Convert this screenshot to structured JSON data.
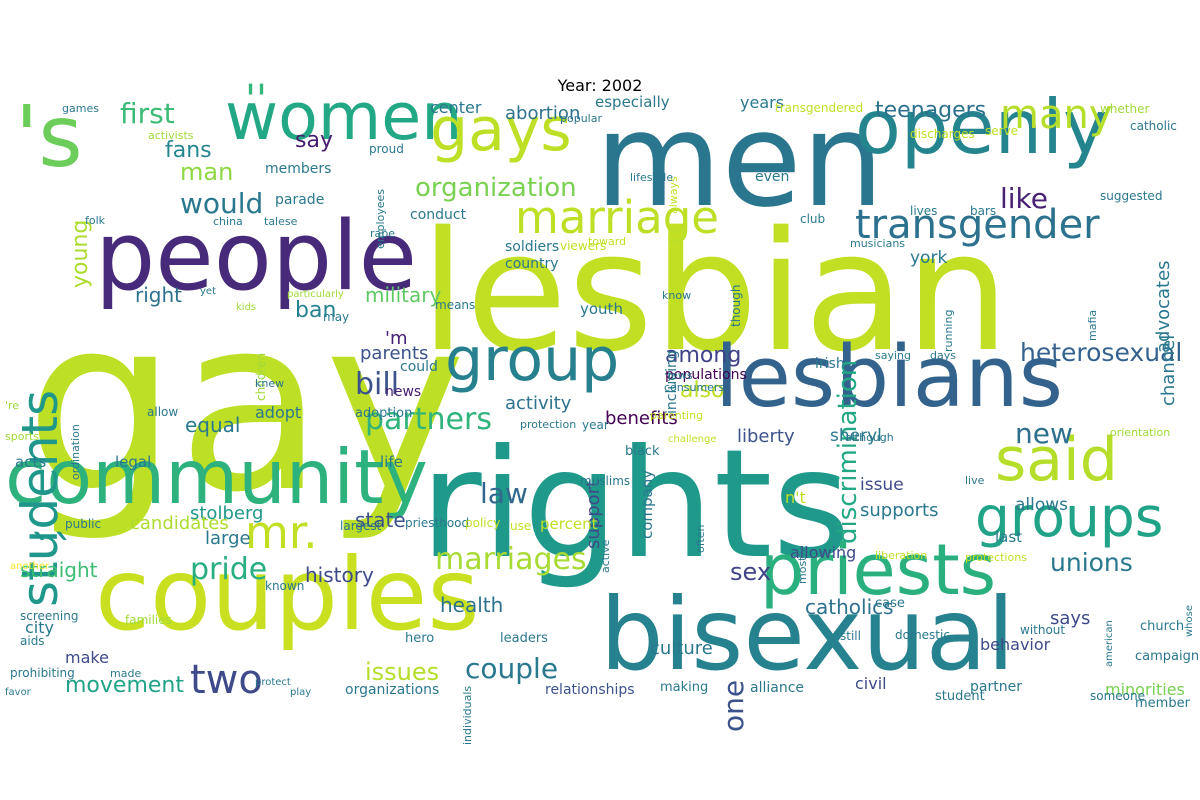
{
  "title": "Year: 2002",
  "palette": [
    "#440154",
    "#46327e",
    "#365c8d",
    "#277f8e",
    "#1fa187",
    "#4ac16d",
    "#a0da39",
    "#fde725"
  ],
  "words": [
    {
      "t": "gay",
      "c": "#bddf26",
      "v": false
    },
    {
      "t": "lesbian",
      "c": "#c2df23",
      "v": false
    },
    {
      "t": "rights",
      "c": "#1f9a8a",
      "v": false
    },
    {
      "t": "men",
      "c": "#2a768e",
      "v": false
    },
    {
      "t": "couples",
      "c": "#c8e020",
      "v": false
    },
    {
      "t": "bisexual",
      "c": "#26828e",
      "v": false
    },
    {
      "t": "people",
      "c": "#472a7a",
      "v": false
    },
    {
      "t": "lesbians",
      "c": "#33638d",
      "v": false
    },
    {
      "t": "community",
      "c": "#2db27d",
      "v": false
    },
    {
      "t": "openly",
      "c": "#25858e",
      "v": false
    },
    {
      "t": "'s",
      "c": "#6ccd5a",
      "v": false
    },
    {
      "t": "priests",
      "c": "#2ab07f",
      "v": false
    },
    {
      "t": "women",
      "c": "#22a884",
      "v": false
    },
    {
      "t": "group",
      "c": "#27808e",
      "v": false
    },
    {
      "t": "groups",
      "c": "#20a386",
      "v": false
    },
    {
      "t": "said",
      "c": "#b5de2b",
      "v": false
    },
    {
      "t": "gays",
      "c": "#bddf26",
      "v": false
    },
    {
      "t": "students",
      "c": "#1f988b",
      "v": true
    },
    {
      "t": "transgender",
      "c": "#2c728e",
      "v": false
    },
    {
      "t": "marriage",
      "c": "#bddf26",
      "v": false
    },
    {
      "t": "``",
      "c": "#21918c",
      "v": false
    },
    {
      "t": "mr.",
      "c": "#c2df23",
      "v": false
    },
    {
      "t": "''",
      "c": "#35b779",
      "v": false
    },
    {
      "t": "partners",
      "c": "#2fb47c",
      "v": false
    },
    {
      "t": "many",
      "c": "#b5de2b",
      "v": false
    },
    {
      "t": "two",
      "c": "#3e4a89",
      "v": false
    },
    {
      "t": "couple",
      "c": "#2a788e",
      "v": false
    },
    {
      "t": "law",
      "c": "#31688e",
      "v": false
    },
    {
      "t": "new",
      "c": "#2d708e",
      "v": false
    },
    {
      "t": "bill",
      "c": "#3b528b",
      "v": false
    },
    {
      "t": "pride",
      "c": "#28ae80",
      "v": false
    },
    {
      "t": "marriages",
      "c": "#a8db34",
      "v": false
    },
    {
      "t": "one",
      "c": "#3b528b",
      "v": true
    },
    {
      "t": "like",
      "c": "#482173",
      "v": false
    },
    {
      "t": "would",
      "c": "#2a788e",
      "v": false
    },
    {
      "t": "unions",
      "c": "#2a788e",
      "v": false
    },
    {
      "t": "heterosexual",
      "c": "#34618d",
      "v": false
    },
    {
      "t": "discrimination",
      "c": "#22a884",
      "v": true
    },
    {
      "t": "first",
      "c": "#3bbb75",
      "v": false
    },
    {
      "t": "man",
      "c": "#8fd744",
      "v": false
    },
    {
      "t": "organization",
      "c": "#7ad151",
      "v": false
    },
    {
      "t": "teenagers",
      "c": "#2c728e",
      "v": false
    },
    {
      "t": "sex",
      "c": "#414487",
      "v": false
    },
    {
      "t": "movement",
      "c": "#20a386",
      "v": false
    },
    {
      "t": "issues",
      "c": "#b5de2b",
      "v": false
    },
    {
      "t": "straight",
      "c": "#3dbc74",
      "v": false
    },
    {
      "t": "history",
      "c": "#3e4a89",
      "v": false
    },
    {
      "t": "catholics",
      "c": "#2c728e",
      "v": false
    },
    {
      "t": "also",
      "c": "#bddf26",
      "v": false
    },
    {
      "t": "among",
      "c": "#404387",
      "v": false
    },
    {
      "t": "ban",
      "c": "#26828e",
      "v": false
    },
    {
      "t": "military",
      "c": "#5ec962",
      "v": false
    },
    {
      "t": "state",
      "c": "#3b528b",
      "v": false
    },
    {
      "t": "health",
      "c": "#2c728e",
      "v": false
    },
    {
      "t": "fans",
      "c": "#24868e",
      "v": false
    },
    {
      "t": "say",
      "c": "#481f70",
      "v": false
    },
    {
      "t": "young",
      "c": "#addc30",
      "v": true
    },
    {
      "t": "abortion",
      "c": "#2c728e",
      "v": false
    },
    {
      "t": "benefits",
      "c": "#440154",
      "v": false
    },
    {
      "t": "support",
      "c": "#3e4a89",
      "v": true
    },
    {
      "t": "activity",
      "c": "#2c728e",
      "v": false
    },
    {
      "t": "parents",
      "c": "#3b528b",
      "v": false
    },
    {
      "t": "liberty",
      "c": "#3b528b",
      "v": false
    },
    {
      "t": "stolberg",
      "c": "#1f988b",
      "v": false
    },
    {
      "t": "sheryl",
      "c": "#2a788e",
      "v": false
    },
    {
      "t": "equal",
      "c": "#2a788e",
      "v": false
    },
    {
      "t": "right",
      "c": "#2c728e",
      "v": false
    },
    {
      "t": "candidates",
      "c": "#addc30",
      "v": false
    },
    {
      "t": "large",
      "c": "#2a788e",
      "v": false
    },
    {
      "t": "culture",
      "c": "#2a788e",
      "v": false
    },
    {
      "t": "relationships",
      "c": "#3b528b",
      "v": false
    },
    {
      "t": "advocates",
      "c": "#2a788e",
      "v": true
    },
    {
      "t": "channel",
      "c": "#2a788e",
      "v": true
    },
    {
      "t": "says",
      "c": "#3e4a89",
      "v": false
    },
    {
      "t": "supports",
      "c": "#2a788e",
      "v": false
    },
    {
      "t": "allows",
      "c": "#2a788e",
      "v": false
    },
    {
      "t": "issue",
      "c": "#3e4a89",
      "v": false
    },
    {
      "t": "york",
      "c": "#2a788e",
      "v": false
    },
    {
      "t": "adopt",
      "c": "#2a788e",
      "v": false
    },
    {
      "t": "city",
      "c": "#2a788e",
      "v": false
    },
    {
      "t": "make",
      "c": "#3e4a89",
      "v": false
    },
    {
      "t": "civil",
      "c": "#3e4a89",
      "v": false
    },
    {
      "t": "behavior",
      "c": "#3e4a89",
      "v": false
    },
    {
      "t": "minorities",
      "c": "#7ad151",
      "v": false
    },
    {
      "t": "organizations",
      "c": "#2a788e",
      "v": false
    },
    {
      "t": "allowing",
      "c": "#3e4a89",
      "v": false
    },
    {
      "t": "n't",
      "c": "#c2df23",
      "v": false
    },
    {
      "t": "percent",
      "c": "#c2df23",
      "v": false
    },
    {
      "t": "including",
      "c": "#2a788e",
      "v": true
    },
    {
      "t": "company",
      "c": "#2a788e",
      "v": true
    },
    {
      "t": "youth",
      "c": "#2a788e",
      "v": false
    },
    {
      "t": "populations",
      "c": "#440154",
      "v": false
    },
    {
      "t": "life",
      "c": "#2a788e",
      "v": false
    },
    {
      "t": "legal",
      "c": "#2a788e",
      "v": false
    },
    {
      "t": "acts",
      "c": "#2a788e",
      "v": false
    },
    {
      "t": "years",
      "c": "#2a788e",
      "v": false
    },
    {
      "t": "center",
      "c": "#2a788e",
      "v": false
    },
    {
      "t": "especially",
      "c": "#2a788e",
      "v": false
    },
    {
      "t": "'m",
      "c": "#482173",
      "v": false
    },
    {
      "t": "news",
      "c": "#482173",
      "v": false
    },
    {
      "t": "could",
      "c": "#2a788e",
      "v": false
    },
    {
      "t": "members",
      "c": "#2a788e",
      "v": false
    },
    {
      "t": "parade",
      "c": "#2a788e",
      "v": false
    },
    {
      "t": "conduct",
      "c": "#2a788e",
      "v": false
    },
    {
      "t": "soldiers",
      "c": "#2a788e",
      "v": false
    },
    {
      "t": "country",
      "c": "#2a788e",
      "v": false
    },
    {
      "t": "even",
      "c": "#2a788e",
      "v": false
    },
    {
      "t": "club",
      "c": "#2a788e",
      "v": false
    },
    {
      "t": "last",
      "c": "#2a788e",
      "v": false
    },
    {
      "t": "campaign",
      "c": "#2a788e",
      "v": false
    },
    {
      "t": "member",
      "c": "#2a788e",
      "v": false
    },
    {
      "t": "partner",
      "c": "#2a788e",
      "v": false
    },
    {
      "t": "student",
      "c": "#2a788e",
      "v": false
    },
    {
      "t": "alliance",
      "c": "#2a788e",
      "v": false
    },
    {
      "t": "making",
      "c": "#2a788e",
      "v": false
    },
    {
      "t": "hero",
      "c": "#2a788e",
      "v": false
    },
    {
      "t": "leaders",
      "c": "#2a788e",
      "v": false
    },
    {
      "t": "aids",
      "c": "#2a788e",
      "v": false
    },
    {
      "t": "screening",
      "c": "#2a788e",
      "v": false
    },
    {
      "t": "prohibiting",
      "c": "#2a788e",
      "v": false
    },
    {
      "t": "known",
      "c": "#2a788e",
      "v": false
    },
    {
      "t": "largest",
      "c": "#2a788e",
      "v": false
    },
    {
      "t": "priesthood",
      "c": "#2a788e",
      "v": false
    },
    {
      "t": "public",
      "c": "#2a788e",
      "v": false
    },
    {
      "t": "adoption",
      "c": "#2a788e",
      "v": false
    },
    {
      "t": "irish",
      "c": "#2a788e",
      "v": false
    },
    {
      "t": "black",
      "c": "#2a788e",
      "v": false
    },
    {
      "t": "case",
      "c": "#2a788e",
      "v": false
    },
    {
      "t": "church",
      "c": "#2a788e",
      "v": false
    },
    {
      "t": "whether",
      "c": "#a0da39",
      "v": false
    },
    {
      "t": "catholic",
      "c": "#2a788e",
      "v": false
    },
    {
      "t": "suggested",
      "c": "#2a788e",
      "v": false
    },
    {
      "t": "discharges",
      "c": "#c2df23",
      "v": false
    },
    {
      "t": "serve",
      "c": "#c2df23",
      "v": false
    },
    {
      "t": "transgendered",
      "c": "#c2df23",
      "v": false
    },
    {
      "t": "bars",
      "c": "#2a788e",
      "v": false
    },
    {
      "t": "lives",
      "c": "#2a788e",
      "v": false
    },
    {
      "t": "musicians",
      "c": "#2a788e",
      "v": false
    },
    {
      "t": "mafia",
      "c": "#2a788e",
      "v": true
    },
    {
      "t": "running",
      "c": "#2a788e",
      "v": true
    },
    {
      "t": "days",
      "c": "#2a788e",
      "v": false
    },
    {
      "t": "saying",
      "c": "#2a788e",
      "v": false
    },
    {
      "t": "although",
      "c": "#2a788e",
      "v": false
    },
    {
      "t": "live",
      "c": "#2a788e",
      "v": false
    },
    {
      "t": "orientation",
      "c": "#a0da39",
      "v": false
    },
    {
      "t": "liberation",
      "c": "#c2df23",
      "v": false
    },
    {
      "t": "protections",
      "c": "#c2df23",
      "v": false
    },
    {
      "t": "american",
      "c": "#2a788e",
      "v": true
    },
    {
      "t": "whose",
      "c": "#2a788e",
      "v": true
    },
    {
      "t": "someone",
      "c": "#2a788e",
      "v": false
    },
    {
      "t": "without",
      "c": "#2a788e",
      "v": false
    },
    {
      "t": "domestic",
      "c": "#2a788e",
      "v": false
    },
    {
      "t": "still",
      "c": "#2a788e",
      "v": false
    },
    {
      "t": "mostly",
      "c": "#2a788e",
      "v": true
    },
    {
      "t": "often",
      "c": "#2a788e",
      "v": true
    },
    {
      "t": "use",
      "c": "#c2df23",
      "v": false
    },
    {
      "t": "policy",
      "c": "#c2df23",
      "v": false
    },
    {
      "t": "active",
      "c": "#2a788e",
      "v": true
    },
    {
      "t": "muslims",
      "c": "#2a788e",
      "v": false
    },
    {
      "t": "year",
      "c": "#2a788e",
      "v": false
    },
    {
      "t": "protection",
      "c": "#2a788e",
      "v": false
    },
    {
      "t": "parenting",
      "c": "#c2df23",
      "v": false
    },
    {
      "t": "challenge",
      "c": "#c2df23",
      "v": false
    },
    {
      "t": "consumers",
      "c": "#2a788e",
      "v": false
    },
    {
      "t": "jews",
      "c": "#2a788e",
      "v": false
    },
    {
      "t": "know",
      "c": "#2a788e",
      "v": false
    },
    {
      "t": "though",
      "c": "#2a788e",
      "v": true
    },
    {
      "t": "viewers",
      "c": "#c2df23",
      "v": false
    },
    {
      "t": "toward",
      "c": "#c2df23",
      "v": false
    },
    {
      "t": "always",
      "c": "#c2df23",
      "v": true
    },
    {
      "t": "lifestyle",
      "c": "#2a788e",
      "v": false
    },
    {
      "t": "popular",
      "c": "#2a788e",
      "v": false
    },
    {
      "t": "proud",
      "c": "#2a788e",
      "v": false
    },
    {
      "t": "employees",
      "c": "#2a788e",
      "v": true
    },
    {
      "t": "rape",
      "c": "#2a788e",
      "v": false
    },
    {
      "t": "talese",
      "c": "#2a788e",
      "v": false
    },
    {
      "t": "china",
      "c": "#2a788e",
      "v": false
    },
    {
      "t": "folk",
      "c": "#2a788e",
      "v": false
    },
    {
      "t": "activists",
      "c": "#a0da39",
      "v": false
    },
    {
      "t": "games",
      "c": "#2a788e",
      "v": false
    },
    {
      "t": "yet",
      "c": "#2a788e",
      "v": false
    },
    {
      "t": "particularly",
      "c": "#a0da39",
      "v": false
    },
    {
      "t": "kids",
      "c": "#a0da39",
      "v": false
    },
    {
      "t": "may",
      "c": "#2a788e",
      "v": false
    },
    {
      "t": "means",
      "c": "#2a788e",
      "v": false
    },
    {
      "t": "children",
      "c": "#a0da39",
      "v": true
    },
    {
      "t": "knew",
      "c": "#2a788e",
      "v": false
    },
    {
      "t": "allow",
      "c": "#2a788e",
      "v": false
    },
    {
      "t": "'re",
      "c": "#a0da39",
      "v": false
    },
    {
      "t": "ordination",
      "c": "#2a788e",
      "v": true
    },
    {
      "t": "sports",
      "c": "#a0da39",
      "v": false
    },
    {
      "t": "another",
      "c": "#fde725",
      "v": false
    },
    {
      "t": "families",
      "c": "#a0da39",
      "v": false
    },
    {
      "t": "made",
      "c": "#2a788e",
      "v": false
    },
    {
      "t": "favor",
      "c": "#2a788e",
      "v": false
    },
    {
      "t": "protect",
      "c": "#2a788e",
      "v": false
    },
    {
      "t": "play",
      "c": "#2a788e",
      "v": false
    },
    {
      "t": "individuals",
      "c": "#2a788e",
      "v": true
    }
  ]
}
